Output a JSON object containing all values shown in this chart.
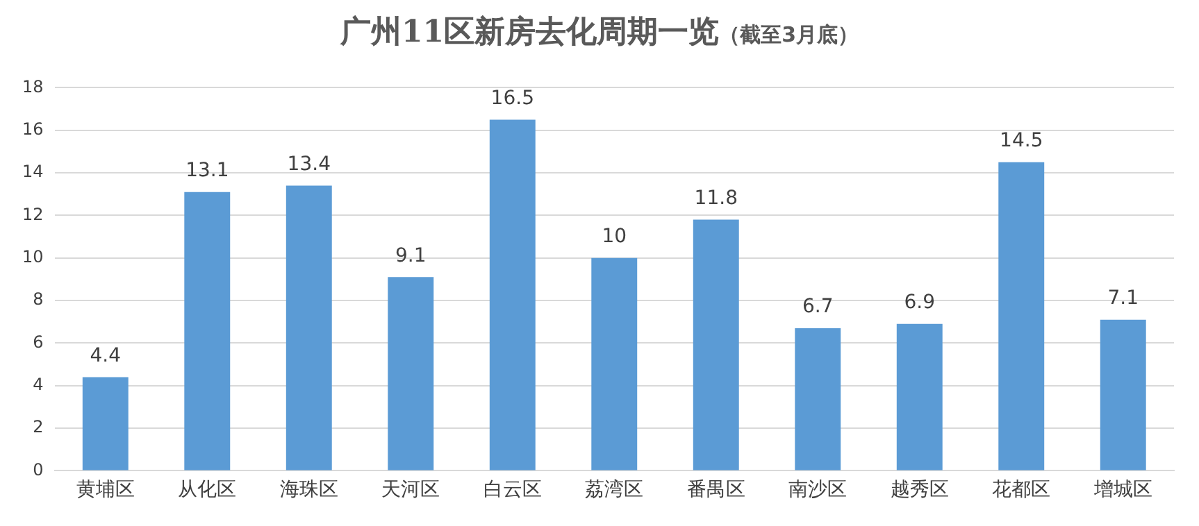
{
  "chart_data": {
    "type": "bar",
    "title": "广州11区新房去化周期一览",
    "subtitle": "（截至3月底）",
    "categories": [
      "黄埔区",
      "从化区",
      "海珠区",
      "天河区",
      "白云区",
      "荔湾区",
      "番禺区",
      "南沙区",
      "越秀区",
      "花都区",
      "增城区"
    ],
    "values": [
      4.4,
      13.1,
      13.4,
      9.1,
      16.5,
      10,
      11.8,
      6.7,
      6.9,
      14.5,
      7.1
    ],
    "color": "#5b9bd5",
    "ylim": [
      0,
      18
    ],
    "yticks": [
      0,
      2,
      4,
      6,
      8,
      10,
      12,
      14,
      16,
      18
    ],
    "grid": "y",
    "data_labels": true,
    "legend": false
  }
}
